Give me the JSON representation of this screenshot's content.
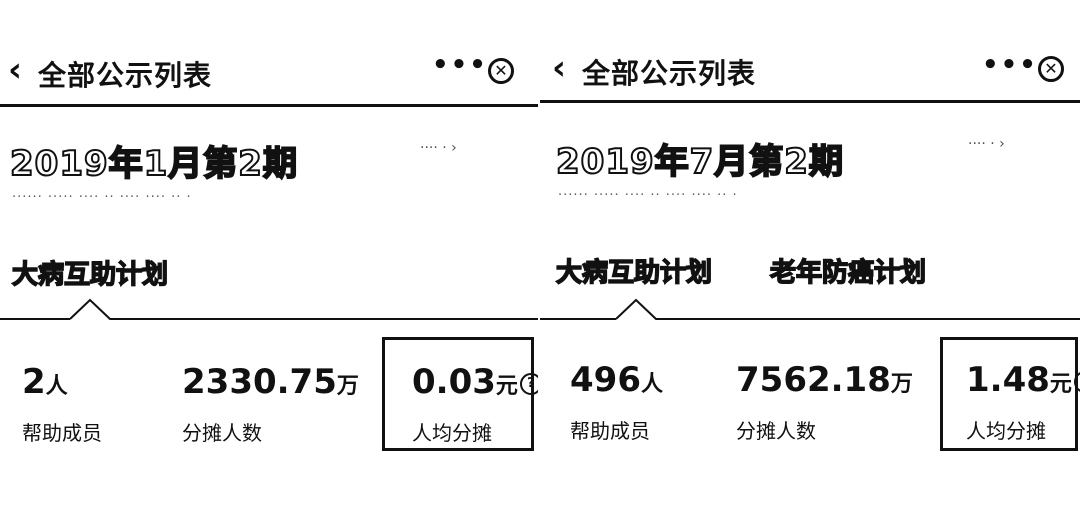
{
  "panels": [
    {
      "header": {
        "back_icon": "chevron-left-icon",
        "title": "全部公示列表",
        "more": "•••",
        "close": "✕"
      },
      "period_title": "2019年1月第2期",
      "subtext": "······ ·····  ···· ·· ···· ···· ··  ·",
      "rules_link": "···· · ›",
      "tabs": [
        "大病互助计划"
      ],
      "stats": {
        "members": {
          "value": "2",
          "unit": "人",
          "label": "帮助成员"
        },
        "sharers": {
          "value": "2330.75",
          "unit": "万",
          "label": "分摊人数"
        },
        "avg": {
          "value": "0.03",
          "unit": "元",
          "label": "人均分摊",
          "icon": "question-icon"
        }
      }
    },
    {
      "header": {
        "back_icon": "chevron-left-icon",
        "title": "全部公示列表",
        "more": "•••",
        "close": "✕"
      },
      "period_title": "2019年7月第2期",
      "subtext": "······ ·····  ···· ·· ···· ···· ··  ·",
      "rules_link": "···· · ›",
      "tabs": [
        "大病互助计划",
        "老年防癌计划"
      ],
      "stats": {
        "members": {
          "value": "496",
          "unit": "人",
          "label": "帮助成员"
        },
        "sharers": {
          "value": "7562.18",
          "unit": "万",
          "label": "分摊人数"
        },
        "avg": {
          "value": "1.48",
          "unit": "元",
          "label": "人均分摊",
          "icon": "question-icon"
        }
      }
    }
  ]
}
